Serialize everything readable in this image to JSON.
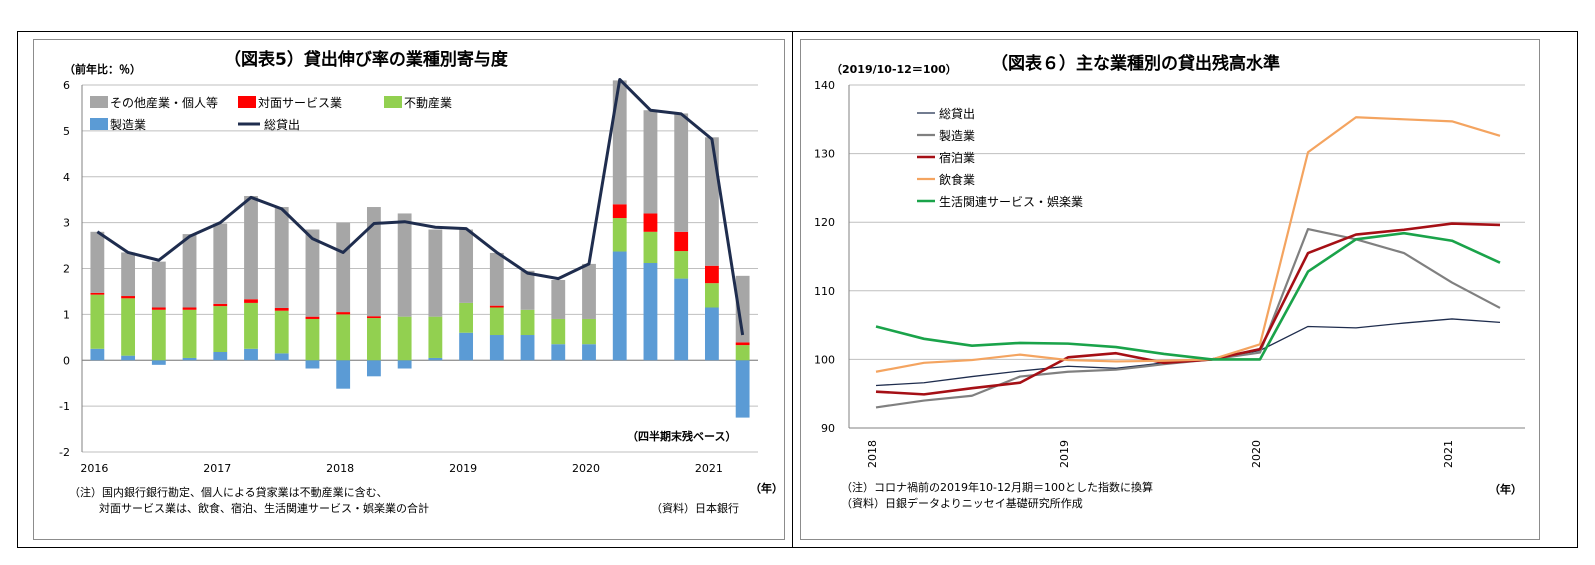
{
  "chart_data": [
    {
      "type": "bar",
      "stacked": true,
      "title": "（図表5）貸出伸び率の業種別寄与度",
      "unit_label": "（前年比：％）",
      "xlabel": "（年）",
      "ylim": [
        -2,
        6
      ],
      "yticks": [
        -2,
        -1,
        0,
        1,
        2,
        3,
        4,
        5,
        6
      ],
      "year_labels": [
        "2016",
        "2017",
        "2018",
        "2019",
        "2020",
        "2021"
      ],
      "categories": [
        "2016Q1",
        "2016Q2",
        "2016Q3",
        "2016Q4",
        "2017Q1",
        "2017Q2",
        "2017Q3",
        "2017Q4",
        "2018Q1",
        "2018Q2",
        "2018Q3",
        "2018Q4",
        "2019Q1",
        "2019Q2",
        "2019Q3",
        "2019Q4",
        "2020Q1",
        "2020Q2",
        "2020Q3",
        "2020Q4",
        "2021Q1",
        "2021Q2"
      ],
      "series": [
        {
          "name": "製造業",
          "type": "bar",
          "color": "#5b9bd5",
          "values": [
            0.25,
            0.1,
            -0.1,
            0.05,
            0.18,
            0.25,
            0.15,
            -0.18,
            -0.62,
            -0.35,
            -0.18,
            0.05,
            0.6,
            0.55,
            0.55,
            0.35,
            0.35,
            2.37,
            2.12,
            1.78,
            1.15,
            -1.25
          ]
        },
        {
          "name": "不動産業",
          "type": "bar",
          "color": "#92d050",
          "values": [
            1.18,
            1.25,
            1.1,
            1.05,
            1.0,
            1.0,
            0.93,
            0.9,
            1.0,
            0.92,
            0.95,
            0.9,
            0.65,
            0.6,
            0.55,
            0.55,
            0.55,
            0.73,
            0.68,
            0.6,
            0.53,
            0.33
          ]
        },
        {
          "name": "対面サービス業",
          "type": "bar",
          "color": "#ff0000",
          "values": [
            0.04,
            0.05,
            0.05,
            0.05,
            0.05,
            0.08,
            0.06,
            0.05,
            0.05,
            0.04,
            0.0,
            0.0,
            0.0,
            0.04,
            0.0,
            0.0,
            0.0,
            0.3,
            0.4,
            0.42,
            0.38,
            0.06
          ]
        },
        {
          "name": "その他産業・個人等",
          "type": "bar",
          "color": "#a6a6a6",
          "values": [
            1.33,
            0.95,
            1.0,
            1.6,
            1.75,
            2.25,
            2.2,
            1.9,
            1.95,
            2.38,
            2.25,
            1.9,
            1.6,
            1.15,
            0.85,
            0.85,
            1.2,
            2.7,
            2.25,
            2.58,
            2.8,
            1.45
          ]
        },
        {
          "name": "総貸出",
          "type": "line",
          "color": "#1f2d4e",
          "values": [
            2.8,
            2.35,
            2.18,
            2.7,
            3.0,
            3.55,
            3.3,
            2.65,
            2.35,
            2.98,
            3.02,
            2.9,
            2.87,
            2.35,
            1.9,
            1.78,
            2.1,
            6.12,
            5.45,
            5.37,
            4.82,
            0.55
          ]
        }
      ],
      "annotation": "（四半期末残ベース）",
      "notes": [
        "（注）国内銀行銀行勘定、個人による貸家業は不動産業に含む、",
        "対面サービス業は、飲食、宿泊、生活関連サービス・娯楽業の合計"
      ],
      "source": "（資料）日本銀行"
    },
    {
      "type": "line",
      "title": "（図表６）主な業種別の貸出残高水準",
      "unit_label": "（2019/10-12＝100）",
      "xlabel": "（年）",
      "ylim": [
        90,
        140
      ],
      "yticks": [
        90,
        100,
        110,
        120,
        130,
        140
      ],
      "year_labels": [
        "2018",
        "2019",
        "2020",
        "2021"
      ],
      "x": [
        "2018Q1",
        "2018Q2",
        "2018Q3",
        "2018Q4",
        "2019Q1",
        "2019Q2",
        "2019Q3",
        "2019Q4",
        "2020Q1",
        "2020Q2",
        "2020Q3",
        "2020Q4",
        "2021Q1",
        "2021Q2"
      ],
      "series": [
        {
          "name": "総貸出",
          "color": "#1f2d4e",
          "width": 1.3,
          "values": [
            96.2,
            96.6,
            97.5,
            98.3,
            99.0,
            98.7,
            99.5,
            100,
            101.3,
            104.8,
            104.6,
            105.3,
            105.9,
            105.4
          ]
        },
        {
          "name": "製造業",
          "color": "#808080",
          "width": 2.2,
          "values": [
            93.0,
            94.0,
            94.7,
            97.5,
            98.2,
            98.5,
            99.3,
            100,
            101.0,
            119.0,
            117.5,
            115.5,
            111.2,
            107.5
          ]
        },
        {
          "name": "宿泊業",
          "color": "#a50f15",
          "width": 2.6,
          "values": [
            95.3,
            94.9,
            95.8,
            96.6,
            100.3,
            100.9,
            99.5,
            100,
            101.5,
            115.5,
            118.2,
            118.9,
            119.8,
            119.6
          ]
        },
        {
          "name": "飲食業",
          "color": "#f4a460",
          "width": 2.2,
          "values": [
            98.2,
            99.5,
            99.9,
            100.7,
            99.9,
            99.7,
            99.8,
            100,
            102.2,
            130.2,
            135.3,
            135.0,
            134.7,
            132.6
          ]
        },
        {
          "name": "生活関連サービス・娯楽業",
          "color": "#1aa34a",
          "width": 2.6,
          "values": [
            104.8,
            103.0,
            102.0,
            102.4,
            102.3,
            101.8,
            100.8,
            100,
            100,
            112.8,
            117.5,
            118.4,
            117.3,
            114.1
          ]
        }
      ],
      "notes": [
        "（注）コロナ禍前の2019年10-12月期＝100とした指数に換算",
        "（資料）日銀データよりニッセイ基礎研究所作成"
      ]
    }
  ]
}
